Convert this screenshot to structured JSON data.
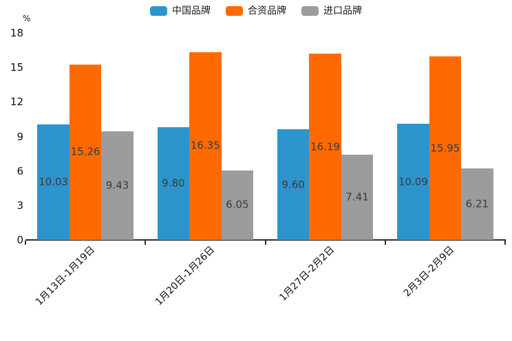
{
  "chart_data": {
    "type": "bar",
    "title": "",
    "unit_label": "%",
    "categories": [
      "1月13日-1月19日",
      "1月20日-1月26日",
      "1月27日-2月2日",
      "2月3日-2月9日"
    ],
    "series": [
      {
        "name": "中国品牌",
        "color": "#2E94CE",
        "values": [
          10.03,
          9.8,
          9.6,
          10.09
        ]
      },
      {
        "name": "合资品牌",
        "color": "#FF6A00",
        "values": [
          15.26,
          16.35,
          16.19,
          15.95
        ]
      },
      {
        "name": "进口品牌",
        "color": "#9C9C9C",
        "values": [
          9.43,
          6.05,
          7.41,
          6.21
        ]
      }
    ],
    "ylim": [
      0,
      18
    ],
    "y_ticks": [
      0,
      3,
      6,
      9,
      12,
      15,
      18
    ],
    "grid": false,
    "legend_position": "top",
    "value_labels": "inside-center",
    "value_label_decimals": 2
  },
  "colors": {
    "background": "#ffffff",
    "axis": "#2d2d2d",
    "tick_text": "#111111",
    "bar_label_text": "#3a3a3a",
    "legend_text": "#1a1a1a"
  }
}
